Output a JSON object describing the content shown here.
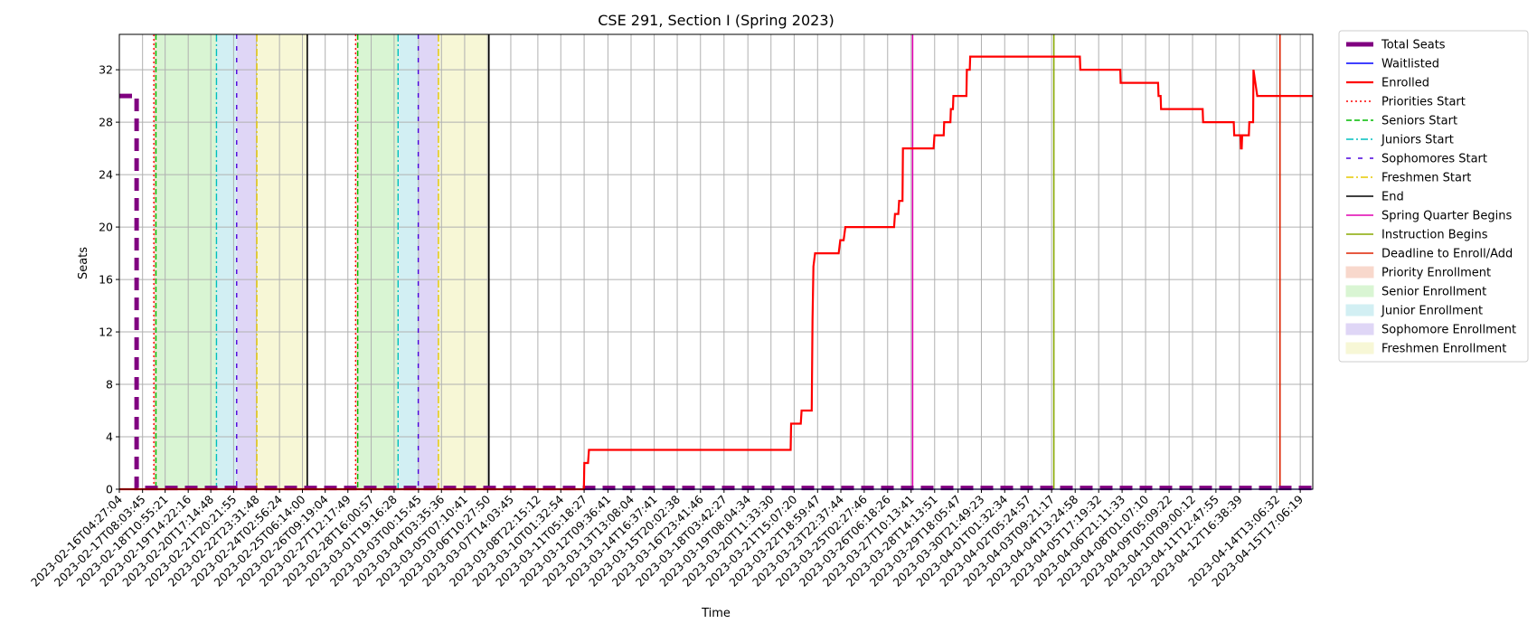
{
  "chart_data": {
    "type": "line",
    "title": "CSE 291, Section I (Spring 2023)",
    "xlabel": "Time",
    "ylabel": "Seats",
    "x_axis_type": "time",
    "xlim": [
      "2023-02-16T04:27:04",
      "2023-04-16T08:00:00"
    ],
    "ylim": [
      0,
      34.7
    ],
    "y_ticks": [
      0,
      4,
      8,
      12,
      16,
      20,
      24,
      28,
      32
    ],
    "grid": true,
    "legend_position": "outside-right-top",
    "x_tick_labels": [
      "2023-02-16T04:27:04",
      "2023-02-17T08:03:45",
      "2023-02-18T10:55:21",
      "2023-02-19T14:22:16",
      "2023-02-20T17:14:48",
      "2023-02-21T20:21:55",
      "2023-02-22T23:31:48",
      "2023-02-24T02:56:24",
      "2023-02-25T06:14:00",
      "2023-02-26T09:19:04",
      "2023-02-27T12:17:49",
      "2023-02-28T16:00:57",
      "2023-03-01T19:16:28",
      "2023-03-03T00:15:45",
      "2023-03-04T03:35:36",
      "2023-03-05T07:10:41",
      "2023-03-06T10:27:50",
      "2023-03-07T14:03:45",
      "2023-03-08T22:15:12",
      "2023-03-10T01:32:54",
      "2023-03-11T05:18:27",
      "2023-03-12T09:36:41",
      "2023-03-13T13:08:04",
      "2023-03-14T16:37:41",
      "2023-03-15T20:02:38",
      "2023-03-16T23:41:46",
      "2023-03-18T03:42:27",
      "2023-03-19T08:04:34",
      "2023-03-20T11:33:30",
      "2023-03-21T15:07:20",
      "2023-03-22T18:59:47",
      "2023-03-23T22:37:44",
      "2023-03-25T02:27:46",
      "2023-03-26T06:18:26",
      "2023-03-27T10:13:41",
      "2023-03-28T14:13:51",
      "2023-03-29T18:05:47",
      "2023-03-30T21:49:23",
      "2023-04-01T01:32:34",
      "2023-04-02T05:24:57",
      "2023-04-03T09:21:17",
      "2023-04-04T13:24:58",
      "2023-04-05T17:19:32",
      "2023-04-06T21:11:33",
      "2023-04-08T01:07:10",
      "2023-04-09T05:09:22",
      "2023-04-10T09:00:12",
      "2023-04-11T12:47:55",
      "2023-04-12T16:38:39",
      "2023-04-14T13:06:32",
      "2023-04-15T17:06:19"
    ],
    "series": [
      {
        "name": "Total Seats",
        "color": "#800080",
        "style": "dashed",
        "points": [
          [
            "2023-02-16T04:27:04",
            30
          ],
          [
            "2023-02-16T16:00:00",
            30
          ],
          [
            "2023-02-17T01:00:00",
            30
          ],
          [
            "2023-02-17T01:00:00",
            0.1
          ],
          [
            "2023-04-16T08:00:00",
            0.1
          ]
        ]
      },
      {
        "name": "Waitlisted",
        "color": "#0000ff",
        "style": "solid",
        "points": [
          [
            "2023-02-16T04:27:04",
            0
          ],
          [
            "2023-04-16T08:00:00",
            0
          ]
        ]
      },
      {
        "name": "Enrolled",
        "color": "#ff0000",
        "style": "solid",
        "points": [
          [
            "2023-02-16T04:27:04",
            0
          ],
          [
            "2023-03-11T05:00:00",
            0
          ],
          [
            "2023-03-11T05:30:00",
            2
          ],
          [
            "2023-03-11T10:00:00",
            2
          ],
          [
            "2023-03-11T11:00:00",
            3
          ],
          [
            "2023-03-21T11:00:00",
            3
          ],
          [
            "2023-03-21T11:30:00",
            5
          ],
          [
            "2023-03-21T23:00:00",
            5
          ],
          [
            "2023-03-22T00:00:00",
            6
          ],
          [
            "2023-03-22T12:00:00",
            6
          ],
          [
            "2023-03-22T13:00:00",
            13
          ],
          [
            "2023-03-22T14:00:00",
            17
          ],
          [
            "2023-03-22T16:00:00",
            18
          ],
          [
            "2023-03-23T20:00:00",
            18
          ],
          [
            "2023-03-23T22:00:00",
            19
          ],
          [
            "2023-03-24T02:00:00",
            19
          ],
          [
            "2023-03-24T04:00:00",
            20
          ],
          [
            "2023-03-26T14:00:00",
            20
          ],
          [
            "2023-03-26T15:00:00",
            21
          ],
          [
            "2023-03-26T19:00:00",
            21
          ],
          [
            "2023-03-26T20:00:00",
            22
          ],
          [
            "2023-03-27T00:00:00",
            22
          ],
          [
            "2023-03-27T00:30:00",
            26
          ],
          [
            "2023-03-28T13:00:00",
            26
          ],
          [
            "2023-03-28T14:00:00",
            27
          ],
          [
            "2023-03-29T01:00:00",
            27
          ],
          [
            "2023-03-29T01:30:00",
            28
          ],
          [
            "2023-03-29T09:00:00",
            28
          ],
          [
            "2023-03-29T09:30:00",
            29
          ],
          [
            "2023-03-29T12:00:00",
            29
          ],
          [
            "2023-03-29T12:30:00",
            30
          ],
          [
            "2023-03-30T04:00:00",
            30
          ],
          [
            "2023-03-30T04:30:00",
            32
          ],
          [
            "2023-03-30T08:00:00",
            32
          ],
          [
            "2023-03-30T08:30:00",
            33
          ],
          [
            "2023-04-04T19:00:00",
            33
          ],
          [
            "2023-04-04T19:30:00",
            32
          ],
          [
            "2023-04-06T19:00:00",
            32
          ],
          [
            "2023-04-06T19:30:00",
            31
          ],
          [
            "2023-04-08T16:00:00",
            31
          ],
          [
            "2023-04-08T16:30:00",
            30
          ],
          [
            "2023-04-08T19:00:00",
            30
          ],
          [
            "2023-04-08T19:30:00",
            29
          ],
          [
            "2023-04-10T21:00:00",
            29
          ],
          [
            "2023-04-10T21:30:00",
            28
          ],
          [
            "2023-04-12T10:00:00",
            28
          ],
          [
            "2023-04-12T10:30:00",
            27
          ],
          [
            "2023-04-12T18:00:00",
            27
          ],
          [
            "2023-04-12T18:30:00",
            26
          ],
          [
            "2023-04-12T19:30:00",
            26
          ],
          [
            "2023-04-12T20:00:00",
            27
          ],
          [
            "2023-04-13T04:00:00",
            27
          ],
          [
            "2023-04-13T04:30:00",
            28
          ],
          [
            "2023-04-13T09:00:00",
            28
          ],
          [
            "2023-04-13T09:30:00",
            32
          ],
          [
            "2023-04-13T14:00:00",
            30
          ],
          [
            "2023-04-16T08:00:00",
            30
          ]
        ]
      }
    ],
    "vertical_lines": [
      {
        "label": "Priorities Start",
        "x": "2023-02-17T21:30:00",
        "color": "#ff0000",
        "style": "dotted"
      },
      {
        "label": "Seniors Start",
        "x": "2023-02-18T00:00:00",
        "color": "#00bb00",
        "style": "dashed"
      },
      {
        "label": "Juniors Start",
        "x": "2023-02-21T00:00:00",
        "color": "#00bfbf",
        "style": "dashdot"
      },
      {
        "label": "Sophomores Start",
        "x": "2023-02-22T00:00:00",
        "color": "#4b00dd",
        "style": "loosedash"
      },
      {
        "label": "Freshmen Start",
        "x": "2023-02-23T00:00:00",
        "color": "#e6c800",
        "style": "dashdot"
      },
      {
        "label": "End",
        "x": "2023-02-25T12:00:00",
        "color": "#000000",
        "style": "solid"
      },
      {
        "label": "Priorities Start",
        "x": "2023-02-27T21:30:00",
        "color": "#ff0000",
        "style": "dotted"
      },
      {
        "label": "Seniors Start",
        "x": "2023-02-28T00:00:00",
        "color": "#00bb00",
        "style": "dashed"
      },
      {
        "label": "Juniors Start",
        "x": "2023-03-02T00:00:00",
        "color": "#00bfbf",
        "style": "dashdot"
      },
      {
        "label": "Sophomores Start",
        "x": "2023-03-03T00:00:00",
        "color": "#4b00dd",
        "style": "loosedash"
      },
      {
        "label": "Freshmen Start",
        "x": "2023-03-04T00:00:00",
        "color": "#e6c800",
        "style": "dashdot"
      },
      {
        "label": "End",
        "x": "2023-03-06T12:00:00",
        "color": "#000000",
        "style": "solid"
      },
      {
        "label": "Spring Quarter Begins",
        "x": "2023-03-27T12:00:00",
        "color": "#e000b0",
        "style": "solid"
      },
      {
        "label": "Instruction Begins",
        "x": "2023-04-03T12:00:00",
        "color": "#88a800",
        "style": "solid"
      },
      {
        "label": "Deadline to Enroll/Add",
        "x": "2023-04-14T17:00:00",
        "color": "#dd2200",
        "style": "solid"
      }
    ],
    "shaded_regions": [
      {
        "label": "Priority Enrollment",
        "start": "2023-02-17T21:30:00",
        "end": "2023-02-18T00:00:00",
        "color": "#f8d8cc"
      },
      {
        "label": "Senior Enrollment",
        "start": "2023-02-18T00:00:00",
        "end": "2023-02-21T00:00:00",
        "color": "#d9f5d3"
      },
      {
        "label": "Junior Enrollment",
        "start": "2023-02-21T00:00:00",
        "end": "2023-02-22T00:00:00",
        "color": "#d2eff3"
      },
      {
        "label": "Sophomore Enrollment",
        "start": "2023-02-22T00:00:00",
        "end": "2023-02-23T00:00:00",
        "color": "#dfd6f6"
      },
      {
        "label": "Freshmen Enrollment",
        "start": "2023-02-23T00:00:00",
        "end": "2023-02-25T12:00:00",
        "color": "#f7f7d6"
      },
      {
        "label": "Priority Enrollment",
        "start": "2023-02-27T21:30:00",
        "end": "2023-02-28T00:00:00",
        "color": "#f8d8cc"
      },
      {
        "label": "Senior Enrollment",
        "start": "2023-02-28T00:00:00",
        "end": "2023-03-02T00:00:00",
        "color": "#d9f5d3"
      },
      {
        "label": "Junior Enrollment",
        "start": "2023-03-02T00:00:00",
        "end": "2023-03-03T00:00:00",
        "color": "#d2eff3"
      },
      {
        "label": "Sophomore Enrollment",
        "start": "2023-03-03T00:00:00",
        "end": "2023-03-04T00:00:00",
        "color": "#dfd6f6"
      },
      {
        "label": "Freshmen Enrollment",
        "start": "2023-03-04T00:00:00",
        "end": "2023-03-06T12:00:00",
        "color": "#f7f7d6"
      }
    ],
    "legend": [
      {
        "label": "Total Seats",
        "kind": "line",
        "color": "#800080",
        "style": "thick"
      },
      {
        "label": "Waitlisted",
        "kind": "line",
        "color": "#0000ff",
        "style": "solid"
      },
      {
        "label": "Enrolled",
        "kind": "line",
        "color": "#ff0000",
        "style": "solidthick"
      },
      {
        "label": "Priorities Start",
        "kind": "line",
        "color": "#ff0000",
        "style": "dotted"
      },
      {
        "label": "Seniors Start",
        "kind": "line",
        "color": "#00bb00",
        "style": "dashed"
      },
      {
        "label": "Juniors Start",
        "kind": "line",
        "color": "#00bfbf",
        "style": "dashdot"
      },
      {
        "label": "Sophomores Start",
        "kind": "line",
        "color": "#4b00dd",
        "style": "loosedash"
      },
      {
        "label": "Freshmen Start",
        "kind": "line",
        "color": "#e6c800",
        "style": "dashdot"
      },
      {
        "label": "End",
        "kind": "line",
        "color": "#000000",
        "style": "solid"
      },
      {
        "label": "Spring Quarter Begins",
        "kind": "line",
        "color": "#e000b0",
        "style": "solid"
      },
      {
        "label": "Instruction Begins",
        "kind": "line",
        "color": "#88a800",
        "style": "solid"
      },
      {
        "label": "Deadline to Enroll/Add",
        "kind": "line",
        "color": "#dd2200",
        "style": "solid"
      },
      {
        "label": "Priority Enrollment",
        "kind": "patch",
        "color": "#f8d8cc"
      },
      {
        "label": "Senior Enrollment",
        "kind": "patch",
        "color": "#d9f5d3"
      },
      {
        "label": "Junior Enrollment",
        "kind": "patch",
        "color": "#d2eff3"
      },
      {
        "label": "Sophomore Enrollment",
        "kind": "patch",
        "color": "#dfd6f6"
      },
      {
        "label": "Freshmen Enrollment",
        "kind": "patch",
        "color": "#f7f7d6"
      }
    ]
  }
}
